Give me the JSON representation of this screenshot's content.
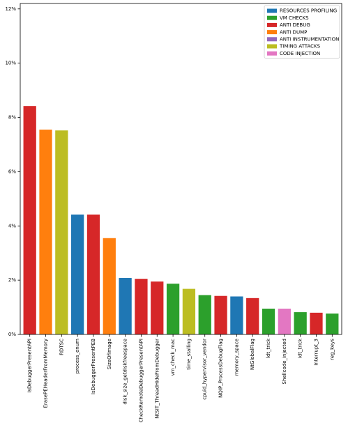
{
  "chart_data": {
    "type": "bar",
    "title": "",
    "xlabel": "",
    "ylabel": "",
    "ylim": [
      0,
      12.2
    ],
    "yticks": [
      0,
      2,
      4,
      6,
      8,
      10,
      12
    ],
    "ytick_suffix": "%",
    "grid": false,
    "legend_placement": "top-right",
    "legend": [
      {
        "label": "RESOURCES PROFILING",
        "color": "#1f77b4"
      },
      {
        "label": "VM CHECKS",
        "color": "#2ca02c"
      },
      {
        "label": "ANTI DEBUG",
        "color": "#d62728"
      },
      {
        "label": "ANTI DUMP",
        "color": "#ff7f0e"
      },
      {
        "label": "ANTI INSTRUMENTATION",
        "color": "#9467bd"
      },
      {
        "label": "TIMING ATTACKS",
        "color": "#bcbd22"
      },
      {
        "label": "CODE INJECTION",
        "color": "#e377c2"
      }
    ],
    "bars": [
      {
        "label": "IsDebuggerPresentAPI",
        "value": 8.42,
        "color": "#d62728"
      },
      {
        "label": "ErasePEHeaderFromMemory",
        "value": 7.55,
        "color": "#ff7f0e"
      },
      {
        "label": "RDTSC",
        "value": 7.52,
        "color": "#bcbd22"
      },
      {
        "label": "process_enum",
        "value": 4.42,
        "color": "#1f77b4"
      },
      {
        "label": "IsDebuggerPresentPEB",
        "value": 4.42,
        "color": "#d62728"
      },
      {
        "label": "SizeOfImage",
        "value": 3.55,
        "color": "#ff7f0e"
      },
      {
        "label": "disk_size_getdiskfreespace",
        "value": 2.08,
        "color": "#1f77b4"
      },
      {
        "label": "CheckRemoteDebuggerPresentAPI",
        "value": 2.05,
        "color": "#d62728"
      },
      {
        "label": "NtSIT_ThreadHideFromDebugger",
        "value": 1.95,
        "color": "#d62728"
      },
      {
        "label": "vm_check_mac",
        "value": 1.87,
        "color": "#2ca02c"
      },
      {
        "label": "time_stalling",
        "value": 1.68,
        "color": "#bcbd22"
      },
      {
        "label": "cpuid_hypervisor_vendor",
        "value": 1.45,
        "color": "#2ca02c"
      },
      {
        "label": "NQIP_ProcessDebugFlag",
        "value": 1.42,
        "color": "#d62728"
      },
      {
        "label": "memory_space",
        "value": 1.4,
        "color": "#1f77b4"
      },
      {
        "label": "NtGlobalFlag",
        "value": 1.34,
        "color": "#d62728"
      },
      {
        "label": "ldt_trick",
        "value": 0.95,
        "color": "#2ca02c"
      },
      {
        "label": "Shellcode_injected",
        "value": 0.95,
        "color": "#e377c2"
      },
      {
        "label": "idt_trick",
        "value": 0.82,
        "color": "#2ca02c"
      },
      {
        "label": "Interrupt_3",
        "value": 0.8,
        "color": "#d62728"
      },
      {
        "label": "reg_keys",
        "value": 0.77,
        "color": "#2ca02c"
      }
    ]
  }
}
